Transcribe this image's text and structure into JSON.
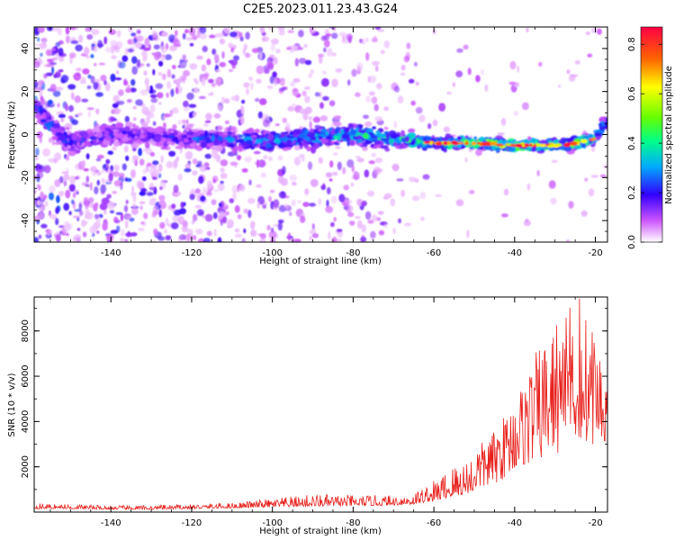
{
  "title": "C2E5.2023.011.23.43.G24",
  "chart_data": [
    {
      "type": "heatmap",
      "xlabel": "Height of straight line (km)",
      "ylabel": "Frequency (Hz)",
      "xlim": [
        -159,
        -17
      ],
      "ylim": [
        -50,
        50
      ],
      "x_ticks": [
        -140,
        -120,
        -100,
        -80,
        -60,
        -40,
        -20
      ],
      "x_tick_labels": [
        "-140",
        "-120",
        "-100",
        "-80",
        "-60",
        "-40",
        "-20"
      ],
      "y_ticks": [
        -40,
        -20,
        0,
        20,
        40
      ],
      "y_tick_labels": [
        "-40",
        "-20",
        "0",
        "20",
        "40"
      ],
      "ridge": {
        "description": "signal band near 0 Hz",
        "x": [
          -158,
          -155,
          -150,
          -145,
          -140,
          -130,
          -120,
          -110,
          -100,
          -90,
          -80,
          -70,
          -60,
          -50,
          -40,
          -30,
          -25,
          -20,
          -18
        ],
        "center_hz": [
          12,
          4,
          -4,
          -2,
          0,
          -1,
          -2,
          -2,
          -3,
          -1,
          0,
          -2,
          -4,
          -4,
          -5,
          -5,
          -4,
          -2,
          5
        ],
        "amplitude": [
          0.25,
          0.3,
          0.25,
          0.22,
          0.22,
          0.2,
          0.25,
          0.3,
          0.35,
          0.4,
          0.45,
          0.45,
          0.5,
          0.6,
          0.65,
          0.6,
          0.6,
          0.5,
          0.4
        ]
      },
      "colorbar": {
        "label": "Normalized spectral amplitude",
        "range": [
          0,
          0.87
        ],
        "ticks": [
          0.0,
          0.2,
          0.4,
          0.6,
          0.8
        ],
        "tick_labels": [
          "0.0",
          "0.2",
          "0.4",
          "0.6",
          "0.8"
        ]
      }
    },
    {
      "type": "line",
      "xlabel": "Height of straight line (km)",
      "ylabel": "SNR (10 * v/v)",
      "xlim": [
        -159,
        -17
      ],
      "ylim": [
        0,
        9500
      ],
      "x_ticks": [
        -140,
        -120,
        -100,
        -80,
        -60,
        -40,
        -20
      ],
      "x_tick_labels": [
        "-140",
        "-120",
        "-100",
        "-80",
        "-60",
        "-40",
        "-20"
      ],
      "y_ticks": [
        2000,
        4000,
        6000,
        8000
      ],
      "y_tick_labels": [
        "2000",
        "4000",
        "6000",
        "8000"
      ],
      "color": "#e8201c",
      "envelope": {
        "x": [
          -159,
          -150,
          -140,
          -130,
          -120,
          -110,
          -100,
          -90,
          -80,
          -70,
          -65,
          -60,
          -55,
          -50,
          -45,
          -40,
          -35,
          -30,
          -25,
          -20,
          -17
        ],
        "base": [
          150,
          150,
          120,
          120,
          150,
          180,
          220,
          260,
          280,
          300,
          350,
          500,
          700,
          900,
          1200,
          1800,
          2200,
          2500,
          3000,
          3000,
          3000
        ],
        "peak": [
          400,
          350,
          300,
          300,
          350,
          420,
          600,
          800,
          750,
          750,
          900,
          1400,
          2200,
          2800,
          3600,
          5000,
          7000,
          8200,
          9500,
          8000,
          5500
        ]
      }
    }
  ]
}
